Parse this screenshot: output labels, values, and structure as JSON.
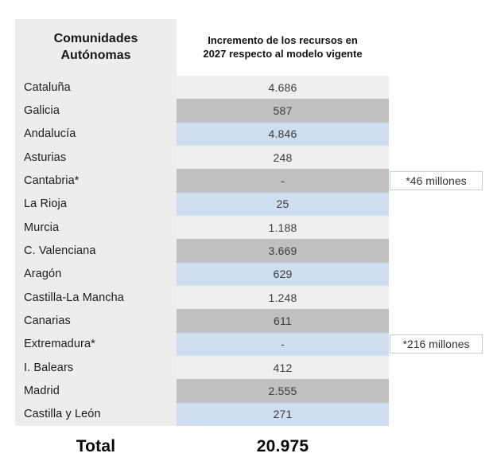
{
  "header": {
    "left_title": "Comunidades Autónomas",
    "right_title": "Incremento de los recursos en 2027 respecto al modelo vigente"
  },
  "table": {
    "rows": [
      {
        "name": "Cataluña",
        "value": "4.686",
        "type": "light"
      },
      {
        "name": "Galicia",
        "value": "587",
        "type": "gray"
      },
      {
        "name": "Andalucía",
        "value": "4.846",
        "type": "blue"
      },
      {
        "name": "Asturias",
        "value": "248",
        "type": "light"
      },
      {
        "name": "Cantabria*",
        "value": "-",
        "type": "gray",
        "note": "*46 millones"
      },
      {
        "name": "La Rioja",
        "value": "25",
        "type": "blue"
      },
      {
        "name": "Murcia",
        "value": "1.188",
        "type": "light"
      },
      {
        "name": "C. Valenciana",
        "value": "3.669",
        "type": "gray"
      },
      {
        "name": "Aragón",
        "value": "629",
        "type": "blue"
      },
      {
        "name": "Castilla-La Mancha",
        "value": "1.248",
        "type": "light"
      },
      {
        "name": "Canarias",
        "value": "611",
        "type": "gray"
      },
      {
        "name": "Extremadura*",
        "value": "-",
        "type": "blue",
        "note": "*216 millones"
      },
      {
        "name": "I. Balears",
        "value": "412",
        "type": "light"
      },
      {
        "name": "Madrid",
        "value": "2.555",
        "type": "gray"
      },
      {
        "name": "Castilla y León",
        "value": "271",
        "type": "blue"
      }
    ]
  },
  "total": {
    "label": "Total",
    "value": "20.975"
  },
  "colors": {
    "panel": "#EDEDED",
    "row_light": "#F0EFEF",
    "row_gray": "#C1BFBF",
    "row_blue": "#CFDDF0",
    "note_border": "#C9CFD8",
    "text_dark": "#1B1B1B",
    "text_value": "#3C3C3C"
  },
  "chart_data": {
    "type": "table",
    "title": "Incremento de los recursos en 2027 respecto al modelo vigente",
    "columns": [
      "Comunidades Autónomas",
      "Incremento de los recursos en 2027 respecto al modelo vigente"
    ],
    "categories": [
      "Cataluña",
      "Galicia",
      "Andalucía",
      "Asturias",
      "Cantabria*",
      "La Rioja",
      "Murcia",
      "C. Valenciana",
      "Aragón",
      "Castilla-La Mancha",
      "Canarias",
      "Extremadura*",
      "I. Balears",
      "Madrid",
      "Castilla y León"
    ],
    "values": [
      4686,
      587,
      4846,
      248,
      null,
      25,
      1188,
      3669,
      629,
      1248,
      611,
      null,
      412,
      2555,
      271
    ],
    "footnotes": {
      "Cantabria*": "*46 millones",
      "Extremadura*": "*216 millones"
    },
    "total": 20975,
    "legend_position": "none",
    "grid": false
  }
}
